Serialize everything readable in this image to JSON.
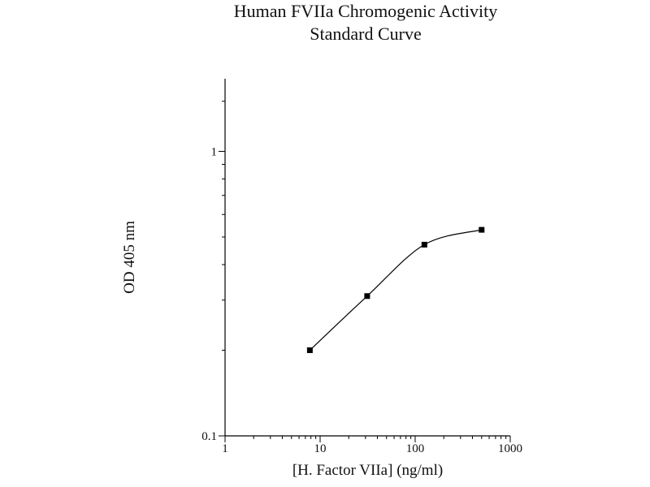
{
  "chart_data": {
    "type": "line",
    "title": "Human FVIIa Chromogenic Activity",
    "subtitle": "Standard Curve",
    "xlabel": "[H. Factor VIIa] (ng/ml)",
    "ylabel": "OD 405 nm",
    "xscale": "log",
    "yscale": "log",
    "xlim": [
      1,
      1000
    ],
    "ylim": [
      0.1,
      1.8
    ],
    "xticks": [
      {
        "value": 1,
        "label": "1"
      },
      {
        "value": 10,
        "label": "10"
      },
      {
        "value": 100,
        "label": "100"
      },
      {
        "value": 1000,
        "label": "1000"
      }
    ],
    "yticks": [
      {
        "value": 0.1,
        "label": "0.1"
      },
      {
        "value": 1,
        "label": "1"
      }
    ],
    "grid": false,
    "series": [
      {
        "x": [
          7.8,
          31.25,
          125,
          500
        ],
        "y": [
          0.2,
          0.31,
          0.47,
          0.53
        ],
        "marker": "square",
        "fit": "smooth",
        "color": "#000000"
      }
    ]
  }
}
